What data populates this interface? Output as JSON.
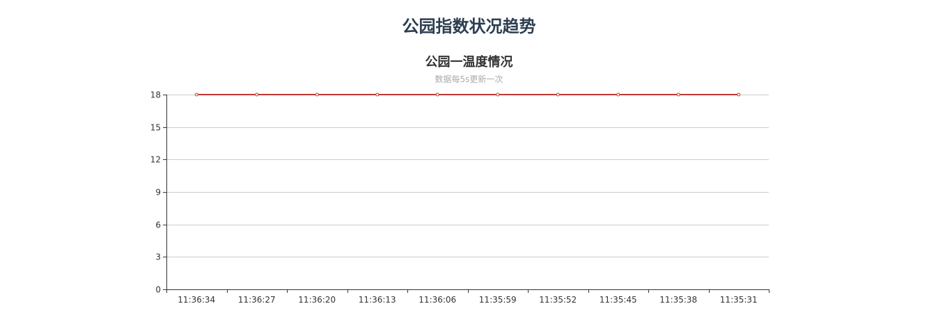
{
  "page": {
    "title": "公园指数状况趋势"
  },
  "chart_data": {
    "type": "line",
    "title": "公园一温度情况",
    "subtitle": "数据每5s更新一次",
    "categories": [
      "11:36:34",
      "11:36:27",
      "11:36:20",
      "11:36:13",
      "11:36:06",
      "11:35:59",
      "11:35:52",
      "11:35:45",
      "11:35:38",
      "11:35:31"
    ],
    "series": [
      {
        "values": [
          18,
          18,
          18,
          18,
          18,
          18,
          18,
          18,
          18,
          18
        ],
        "color": "#c23531"
      }
    ],
    "yticks": [
      0,
      3,
      6,
      9,
      12,
      15,
      18
    ],
    "ylim": [
      0,
      18
    ],
    "xlabel": "",
    "ylabel": "",
    "grid": true,
    "legend": "none",
    "colors": {
      "axis": "#333333",
      "grid": "#cccccc"
    }
  }
}
